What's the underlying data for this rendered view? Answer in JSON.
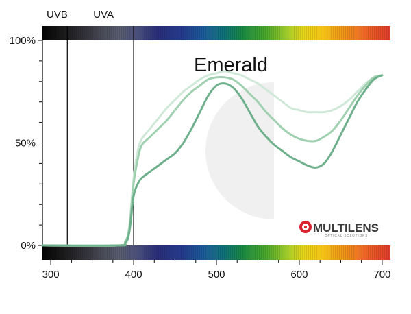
{
  "chart_data": {
    "type": "line",
    "title": "Emerald",
    "xlabel": "",
    "ylabel": "",
    "xlim": [
      290,
      710
    ],
    "ylim": [
      0,
      100
    ],
    "x_ticks": [
      300,
      400,
      500,
      600,
      700
    ],
    "x_tick_labels": [
      "300",
      "400",
      "500",
      "600",
      "700"
    ],
    "y_ticks": [
      0,
      50,
      100
    ],
    "y_tick_labels": [
      "0%",
      "50%",
      "100%"
    ],
    "bands": [
      {
        "label": "UVB",
        "start": 290,
        "end": 320
      },
      {
        "label": "UVA",
        "start": 320,
        "end": 400
      }
    ],
    "grid": false,
    "legend": "none",
    "series": [
      {
        "color": "#cfe8d8",
        "x": [
          290,
          380,
          390,
          395,
          400,
          405,
          410,
          420,
          430,
          440,
          450,
          460,
          470,
          480,
          490,
          500,
          510,
          520,
          530,
          540,
          550,
          560,
          570,
          580,
          590,
          600,
          610,
          620,
          630,
          640,
          650,
          660,
          670,
          680,
          690,
          700
        ],
        "y": [
          0,
          0,
          2,
          10,
          33,
          46,
          52,
          57,
          62,
          67,
          71,
          75,
          78,
          81,
          83,
          84,
          85,
          84,
          83,
          81,
          79,
          76,
          73,
          70,
          67,
          66,
          65,
          65,
          65,
          66,
          68,
          71,
          75,
          79,
          82,
          83
        ]
      },
      {
        "color": "#9fd0b0",
        "x": [
          290,
          380,
          390,
          395,
          400,
          405,
          410,
          420,
          430,
          440,
          450,
          460,
          470,
          480,
          490,
          500,
          510,
          520,
          530,
          540,
          550,
          560,
          570,
          580,
          590,
          600,
          610,
          620,
          630,
          640,
          650,
          660,
          670,
          680,
          690,
          700
        ],
        "y": [
          0,
          0,
          2,
          9,
          30,
          42,
          49,
          53,
          57,
          61,
          66,
          71,
          75,
          78,
          81,
          82,
          82,
          81,
          78,
          74,
          70,
          65,
          61,
          57,
          54,
          52,
          51,
          51,
          53,
          56,
          61,
          67,
          73,
          78,
          82,
          83
        ]
      },
      {
        "color": "#6fb08c",
        "x": [
          290,
          380,
          390,
          395,
          400,
          405,
          410,
          420,
          430,
          440,
          450,
          460,
          470,
          480,
          490,
          500,
          510,
          520,
          530,
          540,
          550,
          560,
          570,
          580,
          590,
          600,
          610,
          620,
          630,
          640,
          650,
          660,
          670,
          680,
          690,
          700
        ],
        "y": [
          0,
          0,
          1,
          7,
          24,
          30,
          33,
          36,
          39,
          42,
          45,
          50,
          57,
          65,
          73,
          78,
          79,
          77,
          72,
          65,
          58,
          53,
          49,
          46,
          43,
          41,
          39,
          38,
          40,
          46,
          54,
          62,
          70,
          76,
          81,
          83
        ]
      }
    ]
  },
  "logo": {
    "text": "MULTILENS",
    "subtitle": "OPTICAL SOLUTIONS",
    "accent_color": "#d9232e"
  },
  "colors": {
    "axis": "#000000",
    "band_line": "#000000"
  }
}
